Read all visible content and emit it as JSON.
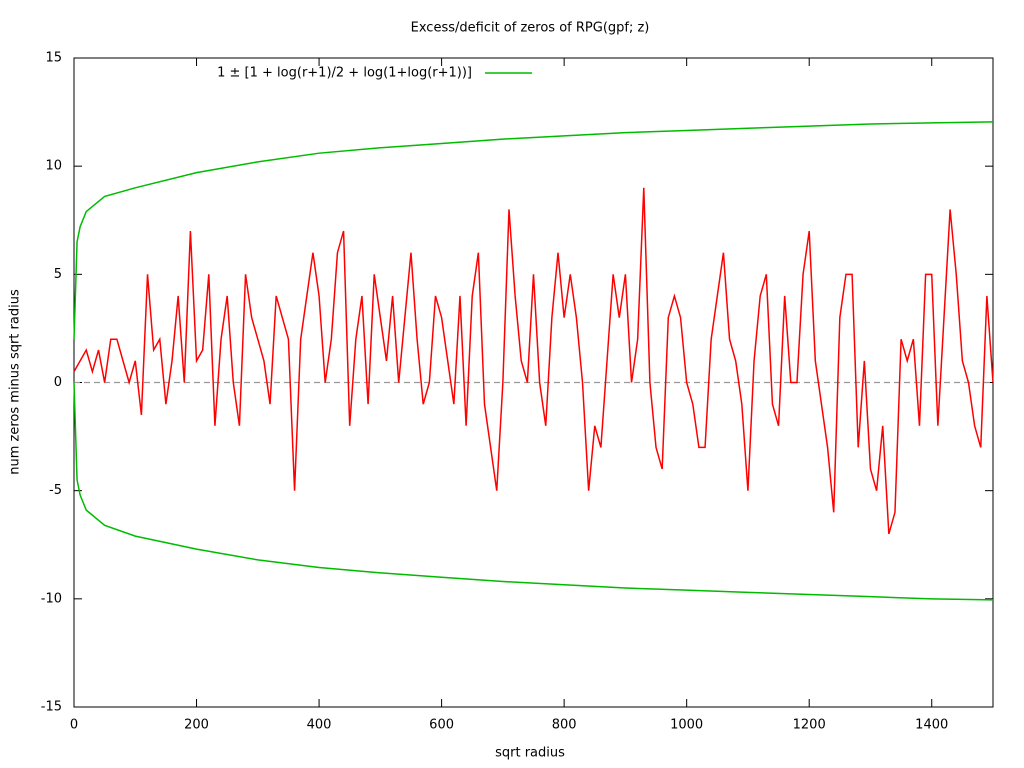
{
  "chart_data": {
    "type": "line",
    "title": "Excess/deficit of zeros of RPG(gpf; z)",
    "xlabel": "sqrt radius",
    "ylabel": "num zeros minus sqrt radius",
    "xlim": [
      0,
      1500
    ],
    "ylim": [
      -15,
      15
    ],
    "xticks": [
      0,
      200,
      400,
      600,
      800,
      1000,
      1200,
      1400
    ],
    "yticks": [
      -15,
      -10,
      -5,
      0,
      5,
      10,
      15
    ],
    "grid": false,
    "legend": "top-left",
    "series": [
      {
        "color": "#999999",
        "dashed": true,
        "x": [
          0,
          1500
        ],
        "values": [
          0,
          0
        ]
      },
      {
        "color": "#ff0000",
        "x": [
          0,
          10,
          20,
          30,
          40,
          50,
          60,
          70,
          80,
          90,
          100,
          110,
          120,
          130,
          140,
          150,
          160,
          170,
          180,
          190,
          200,
          210,
          220,
          230,
          240,
          250,
          260,
          270,
          280,
          290,
          300,
          310,
          320,
          330,
          340,
          350,
          360,
          370,
          380,
          390,
          400,
          410,
          420,
          430,
          440,
          450,
          460,
          470,
          480,
          490,
          500,
          510,
          520,
          530,
          540,
          550,
          560,
          570,
          580,
          590,
          600,
          610,
          620,
          630,
          640,
          650,
          660,
          670,
          680,
          690,
          700,
          710,
          720,
          730,
          740,
          750,
          760,
          770,
          780,
          790,
          800,
          810,
          820,
          830,
          840,
          850,
          860,
          870,
          880,
          890,
          900,
          910,
          920,
          930,
          940,
          950,
          960,
          970,
          980,
          990,
          1000,
          1010,
          1020,
          1030,
          1040,
          1050,
          1060,
          1070,
          1080,
          1090,
          1100,
          1110,
          1120,
          1130,
          1140,
          1150,
          1160,
          1170,
          1180,
          1190,
          1200,
          1210,
          1220,
          1230,
          1240,
          1250,
          1260,
          1270,
          1280,
          1290,
          1300,
          1310,
          1320,
          1330,
          1340,
          1350,
          1360,
          1370,
          1380,
          1390,
          1400,
          1410,
          1420,
          1430,
          1440,
          1450,
          1460,
          1470,
          1480,
          1490,
          1500
        ],
        "values": [
          0.5,
          1,
          1.5,
          0.5,
          1.5,
          0,
          2,
          2,
          1,
          0,
          1,
          -1.5,
          5,
          1.5,
          2,
          -1,
          1,
          4,
          0,
          7,
          1,
          1.5,
          5,
          -2,
          2,
          4,
          0,
          -2,
          5,
          3,
          2,
          1,
          -1,
          4,
          3,
          2,
          -5,
          2,
          4,
          6,
          4,
          0,
          2,
          6,
          7,
          -2,
          2,
          4,
          -1,
          5,
          3,
          1,
          4,
          0,
          3,
          6,
          2,
          -1,
          0,
          4,
          3,
          1,
          -1,
          4,
          -2,
          4,
          6,
          -1,
          -3,
          -5,
          0,
          8,
          4,
          1,
          0,
          5,
          0,
          -2,
          3,
          6,
          3,
          5,
          3,
          0,
          -5,
          -2,
          -3,
          1,
          5,
          3,
          5,
          0,
          2,
          9,
          0,
          -3,
          -4,
          3,
          4,
          3,
          0,
          -1,
          -3,
          -3,
          2,
          4,
          6,
          2,
          1,
          -1,
          -5,
          1,
          4,
          5,
          -1,
          -2,
          4,
          0,
          0,
          5,
          7,
          1,
          -1,
          -3,
          -6,
          3,
          5,
          5,
          -3,
          1,
          -4,
          -5,
          -2,
          -7,
          -6,
          2,
          1,
          2,
          -2,
          5,
          5,
          -2,
          3,
          8,
          5,
          1,
          0,
          -2,
          -3,
          4,
          0
        ]
      },
      {
        "name": "1 ± [1 + log(r+1)/2 + log(1+log(r+1))]",
        "color": "#00bb00",
        "x": [
          0,
          5,
          10,
          20,
          50,
          100,
          200,
          300,
          400,
          500,
          600,
          700,
          800,
          900,
          1000,
          1100,
          1200,
          1300,
          1400,
          1500
        ],
        "values": [
          2,
          6.5,
          7.2,
          7.9,
          8.6,
          9.0,
          9.7,
          10.2,
          10.6,
          10.85,
          11.05,
          11.25,
          11.4,
          11.55,
          11.65,
          11.75,
          11.85,
          11.95,
          12.0,
          12.05
        ]
      },
      {
        "color": "#00bb00",
        "x": [
          0,
          5,
          10,
          20,
          50,
          100,
          200,
          300,
          400,
          500,
          600,
          700,
          800,
          900,
          1000,
          1100,
          1200,
          1300,
          1400,
          1500
        ],
        "values": [
          0,
          -4.5,
          -5.2,
          -5.9,
          -6.6,
          -7.1,
          -7.7,
          -8.2,
          -8.55,
          -8.8,
          -9.0,
          -9.2,
          -9.35,
          -9.5,
          -9.6,
          -9.7,
          -9.8,
          -9.9,
          -10.0,
          -10.05
        ]
      }
    ]
  }
}
